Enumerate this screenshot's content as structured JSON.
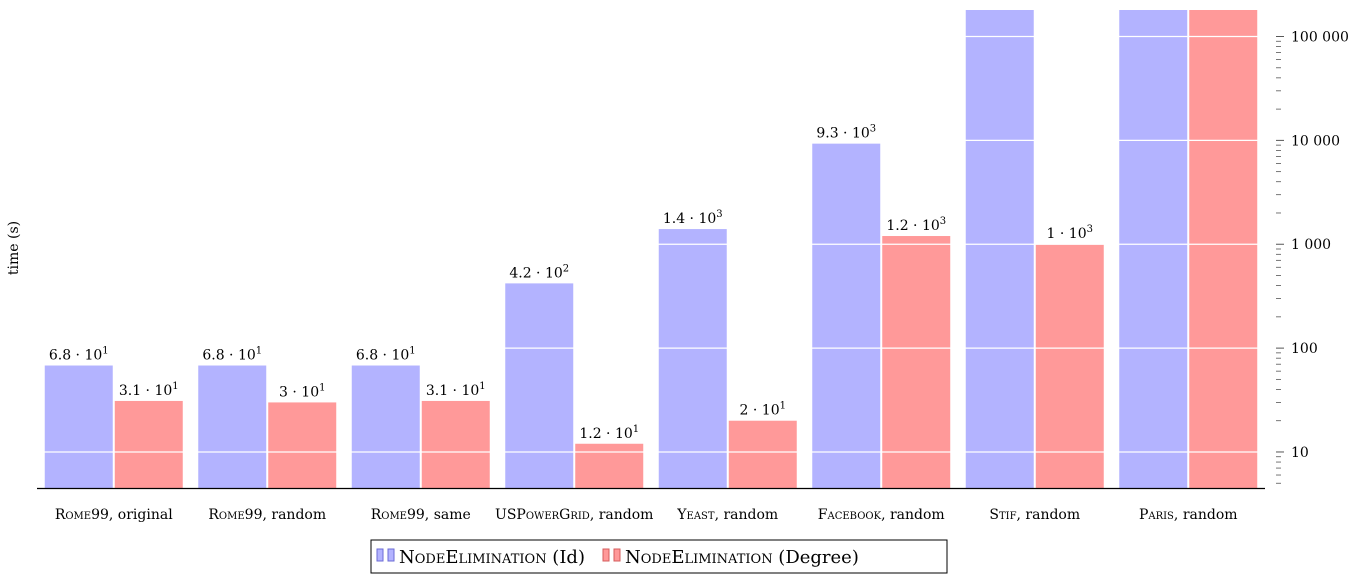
{
  "chart_data": {
    "type": "bar",
    "ylabel": "time (s)",
    "yscale": "log",
    "ylim": [
      4.5,
      180000
    ],
    "y_ticks": [
      10,
      100,
      1000,
      10000,
      100000
    ],
    "y_tick_labels": [
      "10",
      "100",
      "1 000",
      "10 000",
      "100 000"
    ],
    "horizontal_grid": true,
    "legend_position": "bottom-center",
    "categories": [
      {
        "main": "Rome99",
        "rest": ", original"
      },
      {
        "main": "Rome99",
        "rest": ", random"
      },
      {
        "main": "Rome99",
        "rest": ", same"
      },
      {
        "main": "USPowerGrid",
        "rest": ", random"
      },
      {
        "main": "Yeast",
        "rest": ", random"
      },
      {
        "main": "Facebook",
        "rest": ", random"
      },
      {
        "main": "Stif",
        "rest": ", random"
      },
      {
        "main": "Paris",
        "rest": ", random"
      }
    ],
    "series": [
      {
        "name_main": "NodeElimination",
        "name_rest": " (Id)",
        "color": "#b3b3ff",
        "edge_color": "#6b6bd6",
        "values": [
          68,
          68,
          68,
          420,
          1400,
          9300,
          180000,
          180000
        ],
        "labels": [
          {
            "m": "6.8",
            "e": "1"
          },
          {
            "m": "6.8",
            "e": "1"
          },
          {
            "m": "6.8",
            "e": "1"
          },
          {
            "m": "4.2",
            "e": "2"
          },
          {
            "m": "1.4",
            "e": "3"
          },
          {
            "m": "9.3",
            "e": "3"
          },
          null,
          null
        ]
      },
      {
        "name_main": "NodeElimination",
        "name_rest": " (Degree)",
        "color": "#ff9999",
        "edge_color": "#d65c5c",
        "values": [
          31,
          30,
          31,
          12,
          20,
          1200,
          1000,
          180000
        ],
        "labels": [
          {
            "m": "3.1",
            "e": "1"
          },
          {
            "m": "3",
            "e": "1"
          },
          {
            "m": "3.1",
            "e": "1"
          },
          {
            "m": "1.2",
            "e": "1"
          },
          {
            "m": "2",
            "e": "1"
          },
          {
            "m": "1.2",
            "e": "3"
          },
          {
            "m": "1",
            "e": "3"
          },
          null
        ]
      }
    ]
  }
}
